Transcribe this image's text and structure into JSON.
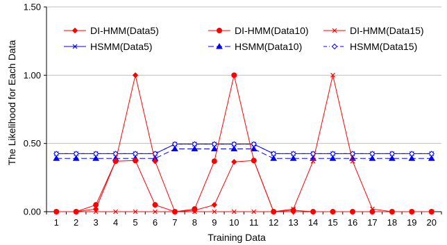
{
  "chart_data": {
    "type": "line",
    "xlabel": "Training Data",
    "ylabel": "The Likelihood for Each Data",
    "ylim": [
      0,
      1.5
    ],
    "yticks": [
      "0.00",
      "0.50",
      "1.00",
      "1.50"
    ],
    "grid": "horizontal",
    "legend_position": "top",
    "categories": [
      "1",
      "2",
      "3",
      "4",
      "5",
      "6",
      "7",
      "8",
      "9",
      "10",
      "11",
      "12",
      "13",
      "14",
      "15",
      "16",
      "17",
      "18",
      "19",
      "20"
    ],
    "series": [
      {
        "name": "DI-HMM(Data5)",
        "color": "#ff0000",
        "marker": "diamond",
        "dash": "solid",
        "values": [
          0,
          0,
          0.02,
          0.37,
          1.0,
          0.37,
          0,
          0.01,
          0.05,
          0.365,
          0.375,
          0,
          0,
          0,
          0,
          0,
          0,
          0,
          0,
          0
        ]
      },
      {
        "name": "DI-HMM(Data10)",
        "color": "#ff0000",
        "marker": "circle",
        "dash": "solid",
        "values": [
          0,
          0,
          0.05,
          0.37,
          0.375,
          0.05,
          0,
          0.02,
          0.37,
          1.0,
          0.375,
          0,
          0.01,
          0,
          0,
          0,
          0,
          0,
          0,
          0
        ]
      },
      {
        "name": "DI-HMM(Data15)",
        "color": "#ff0000",
        "marker": "x",
        "dash": "solid",
        "values": [
          0,
          0,
          0,
          0,
          0,
          0,
          0,
          0,
          0,
          0,
          0,
          0,
          0.02,
          0.37,
          1.0,
          0.37,
          0.02,
          0,
          0,
          0
        ]
      },
      {
        "name": "HSMM(Data5)",
        "color": "#0000ff",
        "marker": "x",
        "dash": "solid",
        "values": [
          0.425,
          0.425,
          0.425,
          0.425,
          0.425,
          0.425,
          0.495,
          0.495,
          0.495,
          0.495,
          0.495,
          0.425,
          0.425,
          0.425,
          0.425,
          0.425,
          0.425,
          0.425,
          0.425,
          0.425
        ]
      },
      {
        "name": "HSMM(Data10)",
        "color": "#0000ff",
        "marker": "triangle",
        "dash": "longdash",
        "values": [
          0.39,
          0.39,
          0.39,
          0.39,
          0.39,
          0.39,
          0.46,
          0.46,
          0.46,
          0.46,
          0.46,
          0.39,
          0.39,
          0.39,
          0.39,
          0.39,
          0.39,
          0.39,
          0.39,
          0.39
        ]
      },
      {
        "name": "HSMM(Data15)",
        "color": "#0000ff",
        "marker": "diamond-open",
        "dash": "dashdot",
        "values": [
          0.425,
          0.425,
          0.425,
          0.425,
          0.425,
          0.425,
          0.495,
          0.495,
          0.495,
          0.495,
          0.495,
          0.425,
          0.425,
          0.425,
          0.425,
          0.425,
          0.425,
          0.425,
          0.425,
          0.425
        ]
      }
    ]
  }
}
